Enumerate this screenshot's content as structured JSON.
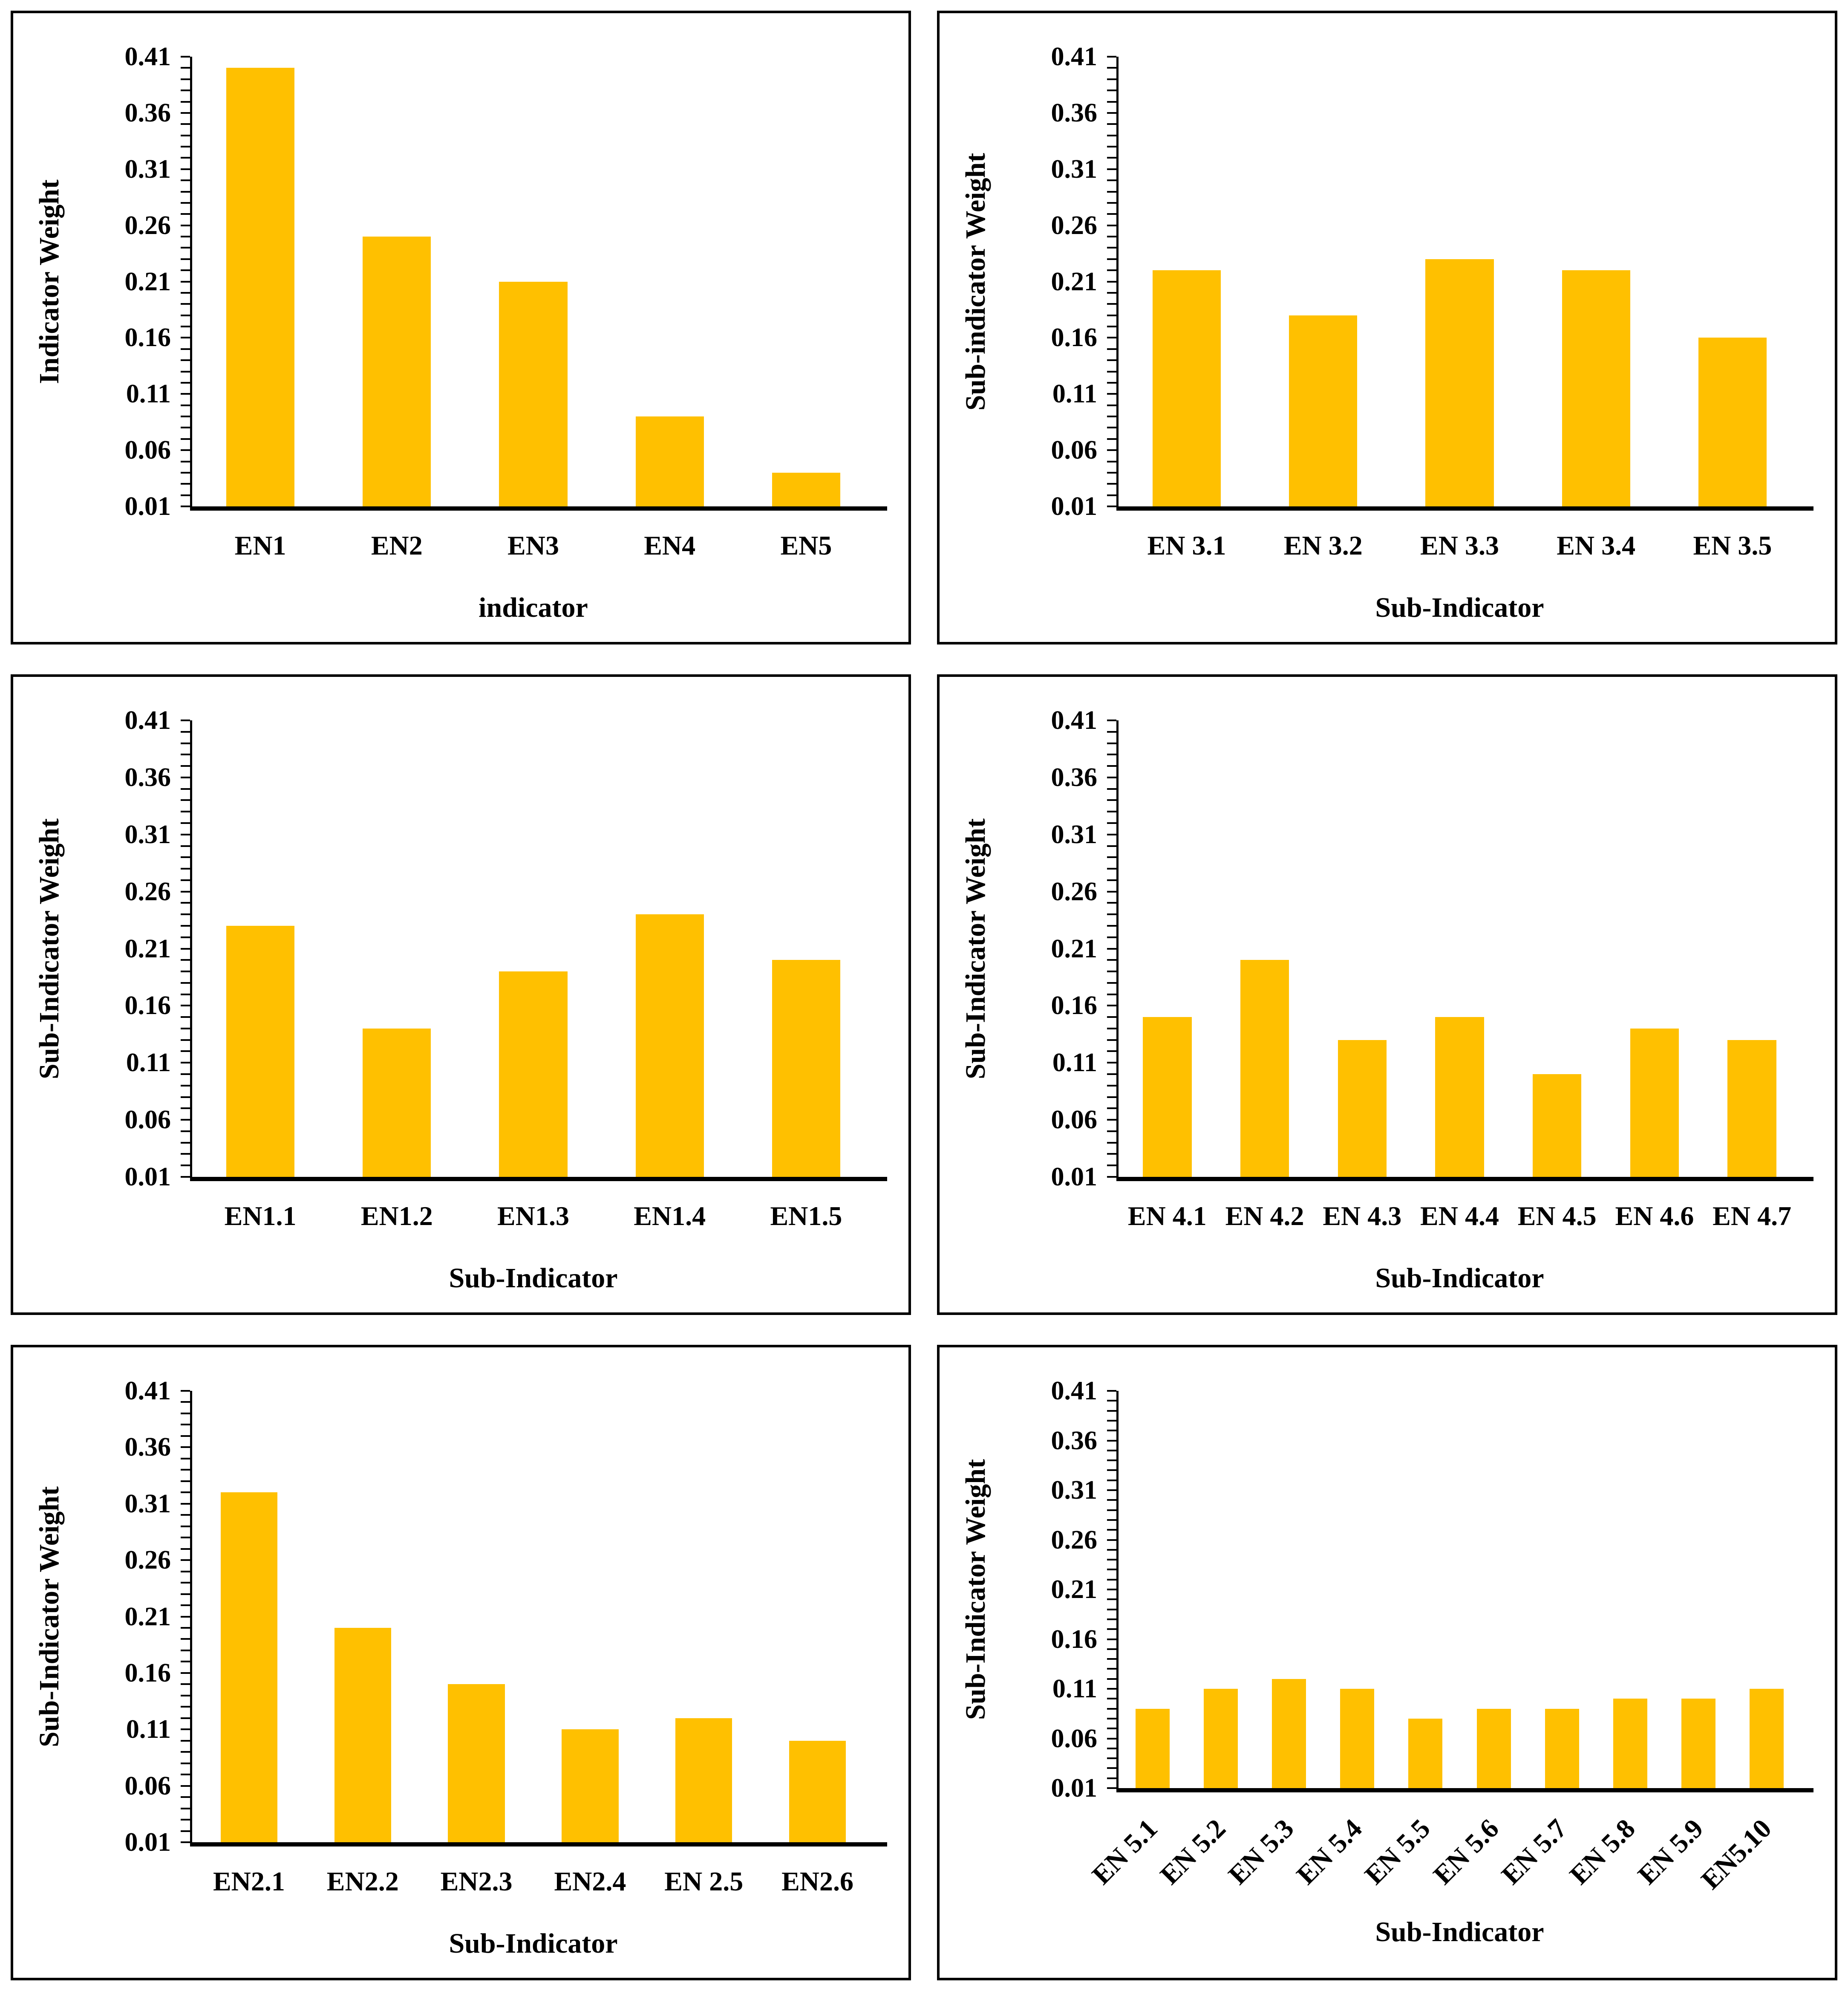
{
  "figure": {
    "bar_color": "#FFC000",
    "axis_color": "#000000",
    "text_color": "#000000",
    "panel_border_color": "#000000",
    "background_color": "#ffffff"
  },
  "y_axis": {
    "min": 0.01,
    "max": 0.41,
    "minor_tick_step": 0.01,
    "tick_labels": [
      "0.41",
      "0.36",
      "0.31",
      "0.26",
      "0.21",
      "0.16",
      "0.11",
      "0.06",
      "0.01"
    ]
  },
  "chart_data": [
    {
      "type": "bar",
      "position": "top-left",
      "title": "",
      "ylabel": "Indicator Weight",
      "xlabel": "indicator",
      "categories": [
        "EN1",
        "EN2",
        "EN3",
        "EN4",
        "EN5"
      ],
      "values": [
        0.4,
        0.25,
        0.21,
        0.09,
        0.04
      ],
      "ylim": [
        0.01,
        0.41
      ],
      "grid": false,
      "x_label_rotation": 0
    },
    {
      "type": "bar",
      "position": "top-right",
      "title": "",
      "ylabel": "Sub-indicator Weight",
      "xlabel": "Sub-Indicator",
      "categories": [
        "EN 3.1",
        "EN 3.2",
        "EN 3.3",
        "EN 3.4",
        "EN 3.5"
      ],
      "values": [
        0.22,
        0.18,
        0.23,
        0.22,
        0.16
      ],
      "ylim": [
        0.01,
        0.41
      ],
      "grid": false,
      "x_label_rotation": 0
    },
    {
      "type": "bar",
      "position": "middle-left",
      "title": "",
      "ylabel": "Sub-Indicator Weight",
      "xlabel": "Sub-Indicator",
      "categories": [
        "EN1.1",
        "EN1.2",
        "EN1.3",
        "EN1.4",
        "EN1.5"
      ],
      "values": [
        0.23,
        0.14,
        0.19,
        0.24,
        0.2
      ],
      "ylim": [
        0.01,
        0.41
      ],
      "grid": false,
      "x_label_rotation": 0
    },
    {
      "type": "bar",
      "position": "middle-right",
      "title": "",
      "ylabel": "Sub-Indicator Weight",
      "xlabel": "Sub-Indicator",
      "categories": [
        "EN 4.1",
        "EN 4.2",
        "EN 4.3",
        "EN 4.4",
        "EN 4.5",
        "EN 4.6",
        "EN 4.7"
      ],
      "values": [
        0.15,
        0.2,
        0.13,
        0.15,
        0.1,
        0.14,
        0.13
      ],
      "ylim": [
        0.01,
        0.41
      ],
      "grid": false,
      "x_label_rotation": 0
    },
    {
      "type": "bar",
      "position": "bottom-left",
      "title": "",
      "ylabel": "Sub-Indicator Weight",
      "xlabel": "Sub-Indicator",
      "categories": [
        "EN2.1",
        "EN2.2",
        "EN2.3",
        "EN2.4",
        "EN 2.5",
        "EN2.6"
      ],
      "values": [
        0.32,
        0.2,
        0.15,
        0.11,
        0.12,
        0.1
      ],
      "ylim": [
        0.01,
        0.41
      ],
      "grid": false,
      "x_label_rotation": 0
    },
    {
      "type": "bar",
      "position": "bottom-right",
      "title": "",
      "ylabel": "Sub-Indicator Weight",
      "xlabel": "Sub-Indicator",
      "categories": [
        "EN 5.1",
        "EN 5.2",
        "EN 5.3",
        "EN 5.4",
        "EN 5.5",
        "EN 5.6",
        "EN 5.7",
        "EN 5.8",
        "EN 5.9",
        "EN5.10"
      ],
      "values": [
        0.09,
        0.11,
        0.12,
        0.11,
        0.08,
        0.09,
        0.09,
        0.1,
        0.1,
        0.11
      ],
      "ylim": [
        0.01,
        0.41
      ],
      "grid": false,
      "x_label_rotation": 45
    }
  ]
}
